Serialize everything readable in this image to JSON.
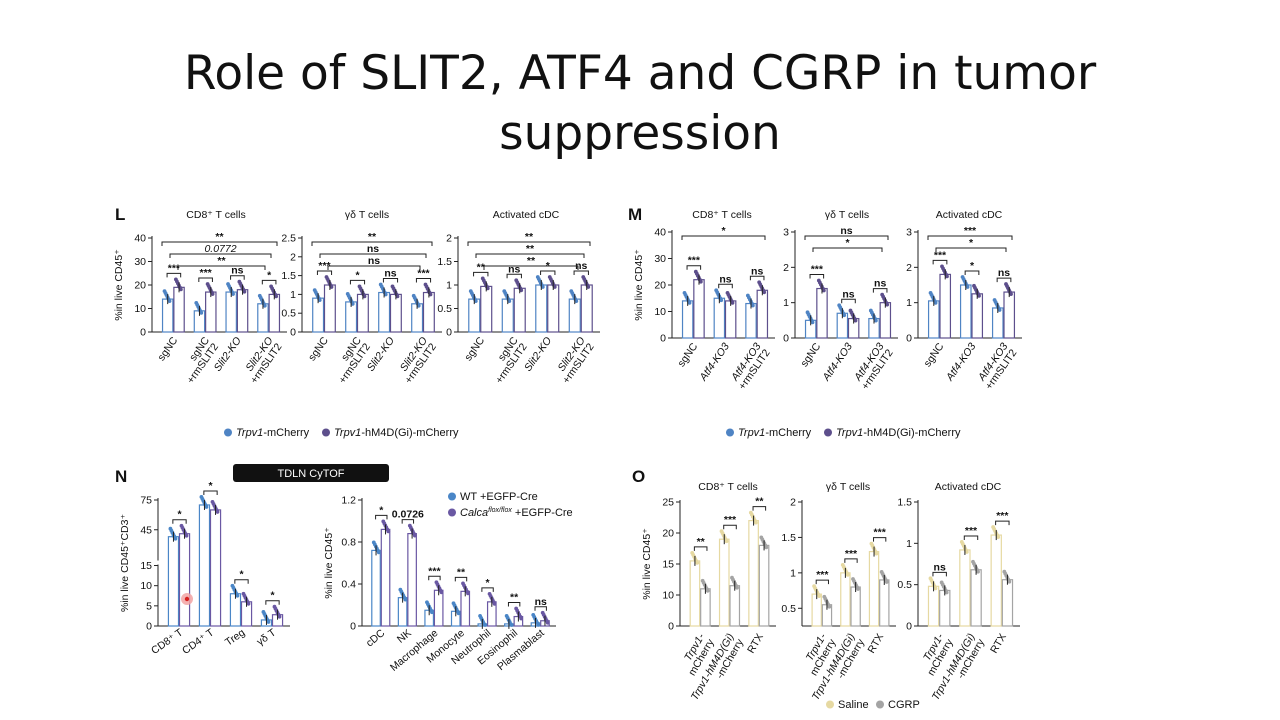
{
  "slide": {
    "title_line1": "Role of SLIT2, ATF4 and CGRP in tumor",
    "title_line2": "suppression"
  },
  "colors": {
    "light_blue": "#4f84c4",
    "dark_purple": "#5d4f8c",
    "wt_blue": "#4a86c7",
    "calca_purple": "#6a58a3",
    "saline": "#e6d9a2",
    "cgrp": "#a4a4a4",
    "badge_bg": "#111111"
  },
  "chart_data": [
    {
      "panel": "L",
      "title": "CD8⁺ T cells",
      "type": "bar",
      "ylabel": "%in live CD45⁺",
      "ylim": [
        0,
        40
      ],
      "yticks": [
        0,
        10,
        20,
        30,
        40
      ],
      "categories": [
        "sgNC",
        "sgNC\n+rmSLIT2",
        "Slit2-KO",
        "Slit2-KO\n+rmSLIT2"
      ],
      "series": [
        {
          "name": "Trpv1-mCherry",
          "values": [
            14,
            9,
            17,
            12
          ]
        },
        {
          "name": "Trpv1-hM4D(Gi)-mCherry",
          "values": [
            19,
            17,
            18,
            16
          ]
        }
      ],
      "annotations": [
        "***",
        "***",
        "ns",
        "*",
        "**",
        "0.0772",
        "**"
      ]
    },
    {
      "panel": "L",
      "title": "γδ T cells",
      "type": "bar",
      "ylim": [
        0,
        2.5
      ],
      "yticks": [
        0,
        0.5,
        1.0,
        1.5,
        2.0,
        2.5
      ],
      "categories": [
        "sgNC",
        "sgNC\n+rmSLIT2",
        "Slit2-KO",
        "Slit2-KO\n+rmSLIT2"
      ],
      "series": [
        {
          "name": "Trpv1-mCherry",
          "values": [
            0.9,
            0.8,
            1.05,
            0.75
          ]
        },
        {
          "name": "Trpv1-hM4D(Gi)-mCherry",
          "values": [
            1.25,
            1.0,
            1.0,
            1.05
          ]
        }
      ],
      "annotations": [
        "***",
        "*",
        "ns",
        "***",
        "**",
        "ns",
        "ns"
      ]
    },
    {
      "panel": "L",
      "title": "Activated cDC",
      "type": "bar",
      "ylim": [
        0,
        2.0
      ],
      "yticks": [
        0,
        0.5,
        1.0,
        1.5,
        2.0
      ],
      "categories": [
        "sgNC",
        "sgNC\n+rmSLIT2",
        "Slit2-KO",
        "Slit2-KO\n+rmSLIT2"
      ],
      "series": [
        {
          "name": "Trpv1-mCherry",
          "values": [
            0.7,
            0.7,
            1.0,
            0.7
          ]
        },
        {
          "name": "Trpv1-hM4D(Gi)-mCherry",
          "values": [
            0.97,
            0.93,
            1.0,
            1.0
          ]
        }
      ],
      "annotations": [
        "**",
        "ns",
        "*",
        "ns",
        "**",
        "**",
        "**"
      ]
    },
    {
      "panel": "M",
      "title": "CD8⁺ T cells",
      "type": "bar",
      "ylabel": "%in live CD45⁺",
      "ylim": [
        0,
        40
      ],
      "yticks": [
        0,
        10,
        20,
        30,
        40
      ],
      "categories": [
        "sgNC",
        "Atf4-KO3",
        "Atf4-KO3\n+rmSLIT2"
      ],
      "series": [
        {
          "name": "Trpv1-mCherry",
          "values": [
            14,
            15,
            13
          ]
        },
        {
          "name": "Trpv1-hM4D(Gi)-mCherry",
          "values": [
            22,
            14,
            18
          ]
        }
      ],
      "annotations": [
        "***",
        "ns",
        "ns",
        "*"
      ]
    },
    {
      "panel": "M",
      "title": "γδ T cells",
      "type": "bar",
      "ylim": [
        0,
        3
      ],
      "yticks": [
        0,
        1,
        2,
        3
      ],
      "categories": [
        "sgNC",
        "Atf4-KO3",
        "Atf4-KO3\n+rmSLIT2"
      ],
      "series": [
        {
          "name": "Trpv1-mCherry",
          "values": [
            0.5,
            0.7,
            0.55
          ]
        },
        {
          "name": "Trpv1-hM4D(Gi)-mCherry",
          "values": [
            1.4,
            0.55,
            1.0
          ]
        }
      ],
      "annotations": [
        "***",
        "ns",
        "ns",
        "ns",
        "*"
      ]
    },
    {
      "panel": "M",
      "title": "Activated cDC",
      "type": "bar",
      "ylim": [
        0,
        3
      ],
      "yticks": [
        0,
        1,
        2,
        3
      ],
      "categories": [
        "sgNC",
        "Atf4-KO3",
        "Atf4-KO3\n+rmSLIT2"
      ],
      "series": [
        {
          "name": "Trpv1-mCherry",
          "values": [
            1.05,
            1.5,
            0.85
          ]
        },
        {
          "name": "Trpv1-hM4D(Gi)-mCherry",
          "values": [
            1.8,
            1.25,
            1.3
          ]
        }
      ],
      "annotations": [
        "***",
        "*",
        "ns",
        "***",
        "*"
      ]
    },
    {
      "panel": "N",
      "title": "TDLN CyTOF",
      "type": "bar",
      "ylabel": "%in live CD45⁺CD3⁺",
      "ylim": [
        0,
        75
      ],
      "yticks": [
        0,
        5,
        10,
        15,
        45,
        75
      ],
      "y_axis_break": [
        15,
        15
      ],
      "categories": [
        "CD8⁺ T",
        "CD4⁺ T",
        "Treg",
        "γδ T"
      ],
      "series": [
        {
          "name": "WT +EGFP-Cre",
          "values": [
            38,
            70,
            8,
            1.5
          ]
        },
        {
          "name": "Calca flox/flox +EGFP-Cre",
          "values": [
            41,
            65,
            6,
            2.8
          ]
        }
      ],
      "annotations": [
        "*",
        "*",
        "*",
        "*"
      ]
    },
    {
      "panel": "N",
      "type": "bar",
      "ylabel": "%in live CD45⁺",
      "ylim": [
        0,
        1.2
      ],
      "yticks": [
        0,
        0.4,
        0.8,
        1.2
      ],
      "categories": [
        "cDC",
        "NK",
        "Macrophage",
        "Monocyte",
        "Neutrophil",
        "Eosinophil",
        "Plasmablast"
      ],
      "series": [
        {
          "name": "WT +EGFP-Cre",
          "values": [
            0.72,
            0.27,
            0.15,
            0.14,
            0.02,
            0.02,
            0.03
          ]
        },
        {
          "name": "Calca flox/flox +EGFP-Cre",
          "values": [
            0.92,
            0.88,
            0.34,
            0.33,
            0.23,
            0.09,
            0.05
          ]
        }
      ],
      "annotations": [
        "*",
        "0.0726",
        "***",
        "**",
        "*",
        "**",
        "ns"
      ]
    },
    {
      "panel": "O",
      "title": "CD8⁺ T cells",
      "type": "bar",
      "ylabel": "%in live CD45⁺",
      "ylim": [
        0,
        25
      ],
      "yticks": [
        0,
        10,
        15,
        20,
        25
      ],
      "categories": [
        "Trpv1-\nmCherry",
        "Trpv1-hM4D(Gi)\n-mCherry",
        "RTX"
      ],
      "series": [
        {
          "name": "Saline",
          "values": [
            15.5,
            19,
            22
          ]
        },
        {
          "name": "CGRP",
          "values": [
            11,
            11.5,
            18
          ]
        }
      ],
      "annotations": [
        "**",
        "***",
        "**"
      ]
    },
    {
      "panel": "O",
      "title": "γδ T cells",
      "type": "bar",
      "ylim": [
        0,
        2.0
      ],
      "yticks": [
        0.5,
        1.0,
        1.5,
        2.0
      ],
      "categories": [
        "Trpv1-\nmCherry",
        "Trpv1-hM4D(Gi)\n-mCherry",
        "RTX"
      ],
      "series": [
        {
          "name": "Saline",
          "values": [
            0.7,
            1.0,
            1.3
          ]
        },
        {
          "name": "CGRP",
          "values": [
            0.55,
            0.8,
            0.9
          ]
        }
      ],
      "annotations": [
        "***",
        "***",
        "***"
      ]
    },
    {
      "panel": "O",
      "title": "Activated cDC",
      "type": "bar",
      "ylim": [
        0,
        1.5
      ],
      "yticks": [
        0,
        0.5,
        1.0,
        1.5
      ],
      "categories": [
        "Trpv1-\nmCherry",
        "Trpv1-hM4D(Gi)\n-mCherry",
        "RTX"
      ],
      "series": [
        {
          "name": "Saline",
          "values": [
            0.48,
            0.92,
            1.1
          ]
        },
        {
          "name": "CGRP",
          "values": [
            0.43,
            0.68,
            0.56
          ]
        }
      ],
      "annotations": [
        "ns",
        "***",
        "***"
      ]
    }
  ],
  "panels": {
    "L": {
      "label": "L"
    },
    "M": {
      "label": "M"
    },
    "N": {
      "label": "N"
    },
    "O": {
      "label": "O"
    }
  },
  "legends": {
    "LM": [
      {
        "text": "Trpv1",
        "suffix": "-mCherry"
      },
      {
        "text": "Trpv1",
        "suffix": "-hM4D(Gi)-mCherry"
      }
    ],
    "N": [
      {
        "text": "WT +EGFP-Cre"
      },
      {
        "text": "Calca",
        "sup": "flox/flox",
        "suffix": " +EGFP-Cre"
      }
    ],
    "O": [
      {
        "text": "Saline"
      },
      {
        "text": "CGRP"
      }
    ]
  },
  "badge": {
    "text": "TDLN CyTOF"
  }
}
